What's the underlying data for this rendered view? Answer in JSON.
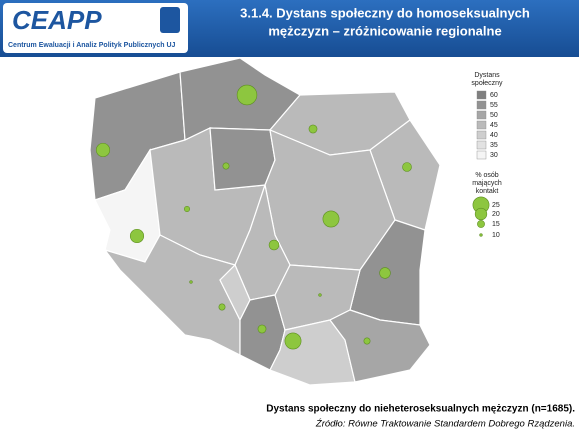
{
  "header": {
    "logo": "CEAPP",
    "logo_subtitle": "Centrum Ewaluacji i Analiz Polityk Publicznych UJ",
    "title": [
      "3.1.4. Dystans społeczny do homoseksualnych",
      "mężczyzn – zróżnicowanie regionalne"
    ]
  },
  "legend": {
    "fill_title": [
      "Dystans",
      "społeczny"
    ],
    "fill_classes": [
      {
        "value": 60,
        "color": "#7f7f7f"
      },
      {
        "value": 55,
        "color": "#929292"
      },
      {
        "value": 50,
        "color": "#a6a6a6"
      },
      {
        "value": 45,
        "color": "#bababa"
      },
      {
        "value": 40,
        "color": "#cecece"
      },
      {
        "value": 35,
        "color": "#e2e2e2"
      },
      {
        "value": 30,
        "color": "#f5f5f5"
      }
    ],
    "size_title": [
      "% osób",
      "mających",
      "kontakt"
    ],
    "size_classes": [
      25,
      20,
      15,
      10
    ],
    "circle_color": "#8dc63f"
  },
  "regions": [
    {
      "distance": 55,
      "contact": 22
    },
    {
      "distance": 55,
      "contact": 29
    },
    {
      "distance": 46,
      "contact": 16
    },
    {
      "distance": 46,
      "contact": 17
    },
    {
      "distance": 32,
      "contact": 22
    },
    {
      "distance": 45,
      "contact": 13
    },
    {
      "distance": 56,
      "contact": 14
    },
    {
      "distance": 46,
      "contact": 25
    },
    {
      "distance": 45,
      "contact": 18
    },
    {
      "distance": 55,
      "contact": 19
    },
    {
      "distance": 45,
      "contact": 14
    },
    {
      "distance": 43,
      "contact": 10
    },
    {
      "distance": 56,
      "contact": 16
    },
    {
      "distance": 45,
      "contact": 10
    },
    {
      "distance": 42,
      "contact": 25
    },
    {
      "distance": 51,
      "contact": 14
    }
  ],
  "footer": {
    "caption": "Dystans społeczny do nieheteroseksualnych mężczyzn (n=1685).",
    "source": "Źródło: Równe Traktowanie Standardem Dobrego Rządzenia."
  }
}
